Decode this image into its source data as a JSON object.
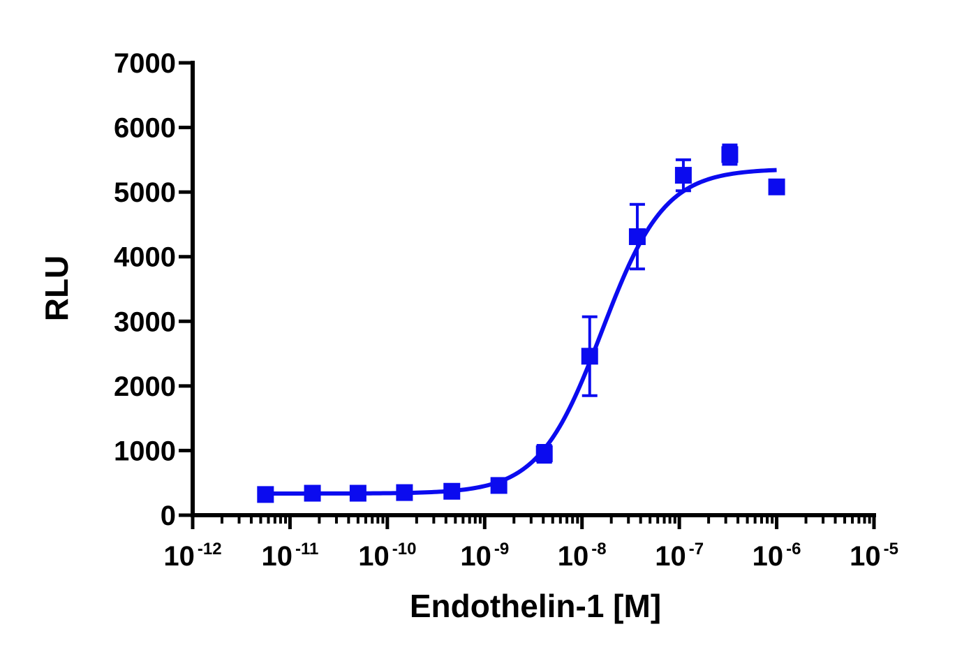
{
  "chart_data": {
    "type": "scatter",
    "title": "",
    "xlabel": "Endothelin-1 [M]",
    "ylabel": "RLU",
    "x_scale": "log",
    "xlim": [
      1e-12,
      1e-05
    ],
    "ylim": [
      0,
      7000
    ],
    "grid": false,
    "x_ticks": [
      {
        "base": "10",
        "exp": "-12"
      },
      {
        "base": "10",
        "exp": "-11"
      },
      {
        "base": "10",
        "exp": "-10"
      },
      {
        "base": "10",
        "exp": "-9"
      },
      {
        "base": "10",
        "exp": "-8"
      },
      {
        "base": "10",
        "exp": "-7"
      },
      {
        "base": "10",
        "exp": "-6"
      },
      {
        "base": "10",
        "exp": "-5"
      }
    ],
    "y_ticks": [
      "0",
      "1000",
      "2000",
      "3000",
      "4000",
      "5000",
      "6000",
      "7000"
    ],
    "color": "#0b0bef",
    "marker": "square",
    "points": [
      {
        "x": 5.6e-12,
        "y": 320,
        "err": 40
      },
      {
        "x": 1.7e-11,
        "y": 340,
        "err": 40
      },
      {
        "x": 5e-11,
        "y": 340,
        "err": 40
      },
      {
        "x": 1.5e-10,
        "y": 350,
        "err": 40
      },
      {
        "x": 4.6e-10,
        "y": 370,
        "err": 40
      },
      {
        "x": 1.4e-09,
        "y": 460,
        "err": 50
      },
      {
        "x": 4.1e-09,
        "y": 950,
        "err": 130
      },
      {
        "x": 1.2e-08,
        "y": 2460,
        "err": 610
      },
      {
        "x": 3.7e-08,
        "y": 4310,
        "err": 500
      },
      {
        "x": 1.1e-07,
        "y": 5260,
        "err": 240
      },
      {
        "x": 3.3e-07,
        "y": 5580,
        "err": 150
      },
      {
        "x": 1e-06,
        "y": 5080,
        "err": 100
      }
    ],
    "fit": {
      "model": "sigmoidal dose-response",
      "bottom": 335,
      "top": 5360,
      "ec50": 1.6e-08,
      "hill": 1.35,
      "x_range": [
        5.6e-12,
        1e-06
      ]
    }
  }
}
